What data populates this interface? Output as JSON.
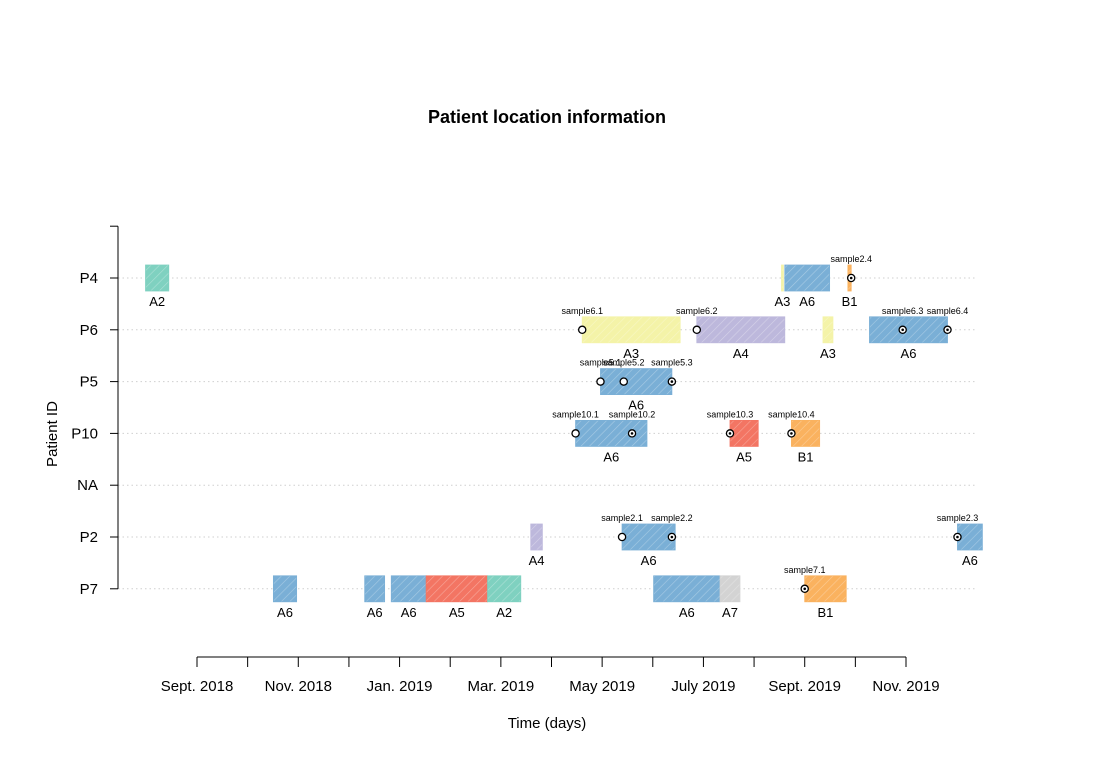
{
  "colors": {
    "A2": "#7FD1C0",
    "A3": "#F4F3A8",
    "A4": "#BDB8DC",
    "A5": "#F37563",
    "A6": "#7AAFD6",
    "A7": "#D3D3D3",
    "B1": "#FAB25F"
  },
  "chart_data": {
    "type": "timeline",
    "title": "Patient location information",
    "xlabel": "Time (days)",
    "ylabel": "Patient ID",
    "x_ticks": [
      "Sept. 2018",
      "Nov. 2018",
      "Jan. 2019",
      "Mar. 2019",
      "May 2019",
      "July 2019",
      "Sept. 2019",
      "Nov. 2019"
    ],
    "x_range": [
      "2018-08-31",
      "2019-11-01"
    ],
    "rows": [
      "P4",
      "P6",
      "P5",
      "P10",
      "NA",
      "P2",
      "P7"
    ],
    "grid": "dotted horizontal",
    "intervals": [
      {
        "patient": "P4",
        "location": "A2",
        "start": "2018-07-31",
        "end": "2018-08-14",
        "label": "A2"
      },
      {
        "patient": "P4",
        "location": "A3",
        "start": "2019-08-18",
        "end": "2019-08-19",
        "label": "A3"
      },
      {
        "patient": "P4",
        "location": "A6",
        "start": "2019-08-20",
        "end": "2019-09-16",
        "label": "A6"
      },
      {
        "patient": "P4",
        "location": "B1",
        "start": "2019-09-27",
        "end": "2019-09-29",
        "label": "B1"
      },
      {
        "patient": "P6",
        "location": "A3",
        "start": "2019-04-20",
        "end": "2019-06-18",
        "label": "A3"
      },
      {
        "patient": "P6",
        "location": "A4",
        "start": "2019-06-28",
        "end": "2019-08-20",
        "label": "A4"
      },
      {
        "patient": "P6",
        "location": "A3",
        "start": "2019-09-12",
        "end": "2019-09-18",
        "label": "A3"
      },
      {
        "patient": "P6",
        "location": "A6",
        "start": "2019-10-10",
        "end": "2019-11-26",
        "label": "A6"
      },
      {
        "patient": "P5",
        "location": "A6",
        "start": "2019-05-01",
        "end": "2019-06-13",
        "label": "A6"
      },
      {
        "patient": "P10",
        "location": "A6",
        "start": "2019-04-16",
        "end": "2019-05-29",
        "label": "A6"
      },
      {
        "patient": "P10",
        "location": "A5",
        "start": "2019-07-18",
        "end": "2019-08-04",
        "label": "A5"
      },
      {
        "patient": "P10",
        "location": "B1",
        "start": "2019-08-24",
        "end": "2019-09-10",
        "label": "B1"
      },
      {
        "patient": "P2",
        "location": "A4",
        "start": "2019-03-20",
        "end": "2019-03-27",
        "label": "A4"
      },
      {
        "patient": "P2",
        "location": "A6",
        "start": "2019-05-14",
        "end": "2019-06-15",
        "label": "A6"
      },
      {
        "patient": "P2",
        "location": "A6",
        "start": "2019-12-02",
        "end": "2019-12-17",
        "label": "A6"
      },
      {
        "patient": "P7",
        "location": "A6",
        "start": "2018-10-16",
        "end": "2018-10-30",
        "label": "A6"
      },
      {
        "patient": "P7",
        "location": "A6",
        "start": "2018-12-10",
        "end": "2018-12-22",
        "label": "A6"
      },
      {
        "patient": "P7",
        "location": "A6",
        "start": "2018-12-26",
        "end": "2019-01-16",
        "label": "A6"
      },
      {
        "patient": "P7",
        "location": "A5",
        "start": "2019-01-16",
        "end": "2019-02-22",
        "label": "A5"
      },
      {
        "patient": "P7",
        "location": "A2",
        "start": "2019-02-22",
        "end": "2019-03-14",
        "label": "A2"
      },
      {
        "patient": "P7",
        "location": "A6",
        "start": "2019-06-02",
        "end": "2019-07-12",
        "label": "A6"
      },
      {
        "patient": "P7",
        "location": "A7",
        "start": "2019-07-12",
        "end": "2019-07-24",
        "label": "A7"
      },
      {
        "patient": "P7",
        "location": "B1",
        "start": "2019-09-01",
        "end": "2019-09-26",
        "label": "B1"
      }
    ],
    "samples": [
      {
        "patient": "P4",
        "name": "sample2.4",
        "date": "2019-09-29",
        "marker": "dotted-circle"
      },
      {
        "patient": "P6",
        "name": "sample6.1",
        "date": "2019-04-20",
        "marker": "open-circle"
      },
      {
        "patient": "P6",
        "name": "sample6.2",
        "date": "2019-06-28",
        "marker": "open-circle"
      },
      {
        "patient": "P6",
        "name": "sample6.3",
        "date": "2019-10-30",
        "marker": "dotted-circle"
      },
      {
        "patient": "P6",
        "name": "sample6.4",
        "date": "2019-11-26",
        "marker": "dotted-circle"
      },
      {
        "patient": "P5",
        "name": "sample5.1",
        "date": "2019-05-01",
        "marker": "open-circle"
      },
      {
        "patient": "P5",
        "name": "sample5.2",
        "date": "2019-05-15",
        "marker": "open-circle"
      },
      {
        "patient": "P5",
        "name": "sample5.3",
        "date": "2019-06-13",
        "marker": "dotted-circle"
      },
      {
        "patient": "P10",
        "name": "sample10.1",
        "date": "2019-04-16",
        "marker": "open-circle"
      },
      {
        "patient": "P10",
        "name": "sample10.2",
        "date": "2019-05-20",
        "marker": "dotted-circle"
      },
      {
        "patient": "P10",
        "name": "sample10.3",
        "date": "2019-07-18",
        "marker": "dotted-circle"
      },
      {
        "patient": "P10",
        "name": "sample10.4",
        "date": "2019-08-24",
        "marker": "dotted-circle"
      },
      {
        "patient": "P2",
        "name": "sample2.1",
        "date": "2019-05-14",
        "marker": "open-circle"
      },
      {
        "patient": "P2",
        "name": "sample2.2",
        "date": "2019-06-13",
        "marker": "dotted-circle"
      },
      {
        "patient": "P2",
        "name": "sample2.3",
        "date": "2019-12-02",
        "marker": "dotted-circle"
      },
      {
        "patient": "P7",
        "name": "sample7.1",
        "date": "2019-09-01",
        "marker": "dotted-circle"
      }
    ]
  }
}
